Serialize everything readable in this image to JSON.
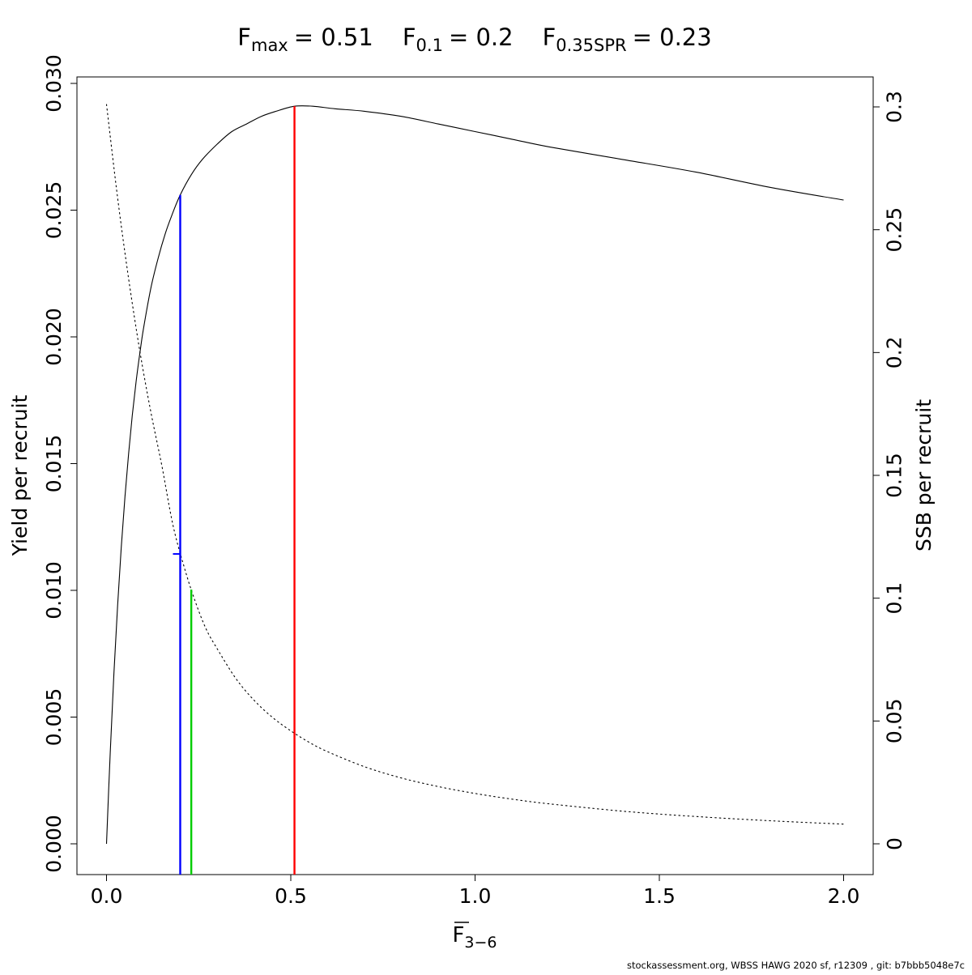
{
  "title": {
    "parts": [
      {
        "base": "F",
        "sub": "max",
        "value": "= 0.51"
      },
      {
        "base": "F",
        "sub": "0.1",
        "value": "= 0.2"
      },
      {
        "base": "F",
        "sub": "0.35SPR",
        "value": "= 0.23"
      }
    ]
  },
  "footer": "stockassessment.org, WBSS HAWG 2020 sf, r12309 , git: b7bbb5048e7c",
  "chart_data": {
    "type": "line",
    "title_text": "Fmax = 0.51   F0.1 = 0.2   F0.35SPR = 0.23",
    "x_axis": {
      "label_base": "F",
      "label_overbar": true,
      "label_sub": "3−6",
      "range": [
        0,
        2
      ],
      "ticks": [
        0,
        0.5,
        1.0,
        1.5,
        2.0
      ],
      "tick_labels": [
        "0.0",
        "0.5",
        "1.0",
        "1.5",
        "2.0"
      ]
    },
    "y_left": {
      "label": "Yield per recruit",
      "range": [
        0,
        0.03
      ],
      "ticks": [
        0,
        0.005,
        0.01,
        0.015,
        0.02,
        0.025,
        0.03
      ],
      "tick_labels": [
        "0.000",
        "0.005",
        "0.010",
        "0.015",
        "0.020",
        "0.025",
        "0.030"
      ]
    },
    "y_right": {
      "label": "SSB per recruit",
      "range": [
        0,
        0.3
      ],
      "ticks": [
        0,
        0.05,
        0.1,
        0.15,
        0.2,
        0.25,
        0.3
      ],
      "tick_labels": [
        "0",
        "0.05",
        "0.1",
        "0.15",
        "0.2",
        "0.25",
        "0.3"
      ]
    },
    "grid": false,
    "legend": "none",
    "series": [
      {
        "name": "yield-per-recruit",
        "axis": "left",
        "style": "solid",
        "color": "#000000",
        "x": [
          0,
          0.01,
          0.02,
          0.03,
          0.04,
          0.05,
          0.06,
          0.07,
          0.08,
          0.09,
          0.1,
          0.12,
          0.14,
          0.16,
          0.18,
          0.2,
          0.23,
          0.26,
          0.3,
          0.34,
          0.38,
          0.42,
          0.46,
          0.51,
          0.56,
          0.62,
          0.7,
          0.8,
          0.9,
          1.0,
          1.1,
          1.2,
          1.4,
          1.6,
          1.8,
          2.0
        ],
        "y": [
          0,
          0.0036,
          0.0067,
          0.0094,
          0.0117,
          0.0137,
          0.0154,
          0.0169,
          0.0182,
          0.0193,
          0.0203,
          0.0219,
          0.0231,
          0.0241,
          0.0249,
          0.0256,
          0.0264,
          0.027,
          0.0276,
          0.0281,
          0.0284,
          0.0287,
          0.0289,
          0.0291,
          0.0291,
          0.029,
          0.0289,
          0.0287,
          0.0284,
          0.0281,
          0.0278,
          0.0275,
          0.027,
          0.0265,
          0.0259,
          0.0254
        ]
      },
      {
        "name": "ssb-per-recruit",
        "axis": "right",
        "style": "dotted",
        "color": "#000000",
        "x": [
          0,
          0.03,
          0.06,
          0.09,
          0.12,
          0.15,
          0.18,
          0.21,
          0.24,
          0.27,
          0.3,
          0.35,
          0.4,
          0.45,
          0.5,
          0.55,
          0.6,
          0.7,
          0.8,
          0.9,
          1.0,
          1.1,
          1.2,
          1.4,
          1.6,
          1.8,
          2.0
        ],
        "y": [
          0.301,
          0.263,
          0.23,
          0.201,
          0.176,
          0.154,
          0.13,
          0.113,
          0.099,
          0.0875,
          0.0795,
          0.0675,
          0.0585,
          0.0515,
          0.046,
          0.0413,
          0.0375,
          0.0314,
          0.0268,
          0.0233,
          0.0205,
          0.0182,
          0.0163,
          0.0133,
          0.0111,
          0.0094,
          0.008
        ]
      }
    ],
    "ref_lines": [
      {
        "name": "fmax-line",
        "label": "Fmax",
        "x": 0.51,
        "y_top": 0.0291,
        "axis": "left",
        "color": "#FF0000"
      },
      {
        "name": "f01-line",
        "label": "F0.1",
        "x": 0.2,
        "y_top": 0.0256,
        "axis": "left",
        "color": "#0000FF",
        "notch": {
          "y": 0.118,
          "axis": "right"
        }
      },
      {
        "name": "f035spr-line",
        "label": "F0.35SPR",
        "x": 0.23,
        "y_top": 0.1035,
        "axis": "right",
        "color": "#00CC00"
      }
    ]
  }
}
